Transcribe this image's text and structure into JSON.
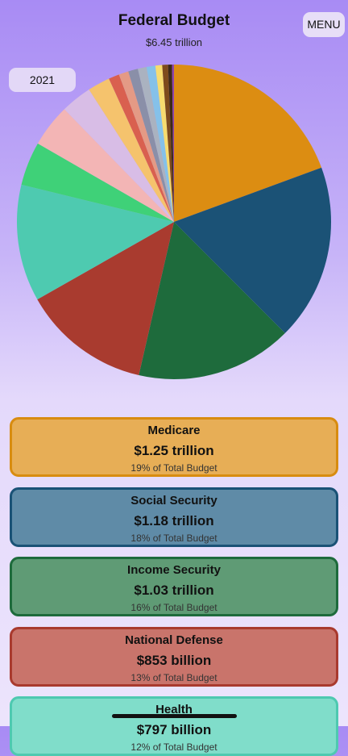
{
  "header": {
    "title": "Federal Budget",
    "subtitle": "$6.45 trillion"
  },
  "menu": "MENU",
  "year": "2021",
  "chart_data": {
    "type": "pie",
    "values": [
      19.4,
      18.1,
      16.1,
      13.2,
      12,
      4.5,
      4.4,
      3.2,
      2.3,
      1.1,
      1.0,
      1.0,
      0.9,
      0.9,
      0.7,
      0.6,
      0.4,
      0.2
    ],
    "colors": [
      "#dc8d12",
      "#1b5276",
      "#1e6b3c",
      "#a93b2f",
      "#4ecab0",
      "#3fd178",
      "#f3b5b5",
      "#d8bde6",
      "#f5c36d",
      "#d9604f",
      "#e49a85",
      "#8a8fa8",
      "#aab2c0",
      "#85c1e9",
      "#f7dc6f",
      "#7e4b1c",
      "#3d2a16",
      "#8e44ad"
    ]
  },
  "cards": [
    {
      "title": "Medicare",
      "amount": "$1.25 trillion",
      "share": "19% of Total Budget",
      "color": "#e7ae56",
      "border": "#d88c10"
    },
    {
      "title": "Social Security",
      "amount": "$1.18 trillion",
      "share": "18% of Total Budget",
      "color": "#5f8ba7",
      "border": "#1a5276"
    },
    {
      "title": "Income Security",
      "amount": "$1.03 trillion",
      "share": "16% of Total Budget",
      "color": "#5f9b75",
      "border": "#1e6b3c"
    },
    {
      "title": "National Defense",
      "amount": "$853 billion",
      "share": "13% of Total Budget",
      "color": "#c9746b",
      "border": "#a93a2e"
    },
    {
      "title": "Health",
      "amount": "$797 billion",
      "share": "12% of Total Budget",
      "color": "#80ddca",
      "border": "#4ec9b0"
    }
  ]
}
